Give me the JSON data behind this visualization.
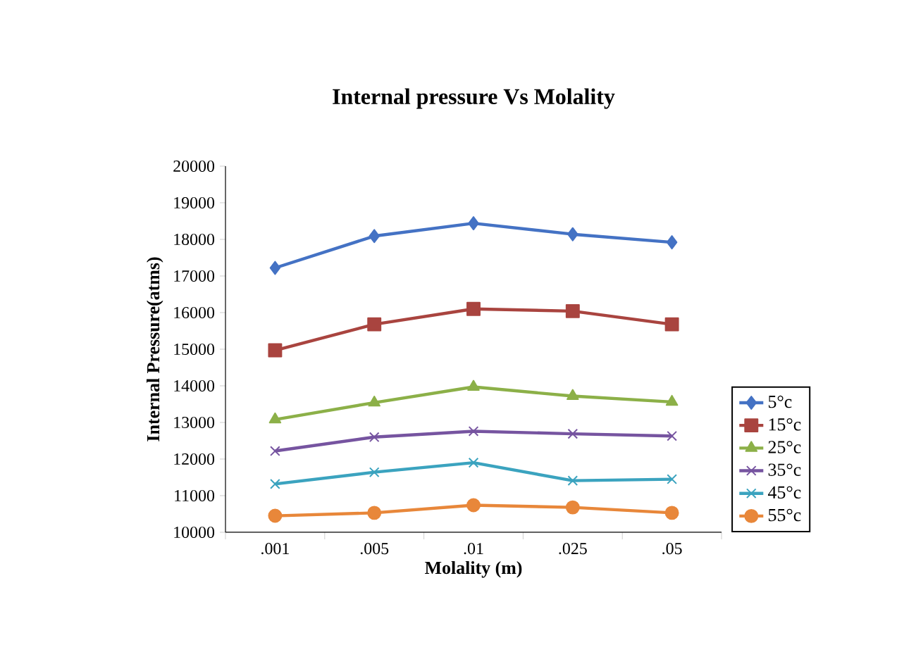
{
  "chart_data": {
    "type": "line",
    "title": "Internal pressure  Vs Molality",
    "xlabel": "Molality (m)",
    "ylabel": "Internal Pressure(atms)",
    "categories": [
      ".001",
      ".005",
      ".01",
      ".025",
      ".05"
    ],
    "series": [
      {
        "name": "5°c",
        "color": "#4472c4",
        "marker": "diamond",
        "values": [
          17220,
          18090,
          18440,
          18140,
          17920
        ]
      },
      {
        "name": "15°c",
        "color": "#a9443f",
        "marker": "square",
        "values": [
          14970,
          15680,
          16100,
          16040,
          15680
        ]
      },
      {
        "name": "25°c",
        "color": "#8cb048",
        "marker": "triangle",
        "values": [
          13080,
          13540,
          13970,
          13720,
          13560
        ]
      },
      {
        "name": "35°c",
        "color": "#7654a0",
        "marker": "cross",
        "values": [
          12220,
          12600,
          12760,
          12690,
          12630
        ]
      },
      {
        "name": "45°c",
        "color": "#3ba3bf",
        "marker": "cross",
        "values": [
          11320,
          11640,
          11900,
          11410,
          11450
        ]
      },
      {
        "name": "55°c",
        "color": "#e8873a",
        "marker": "circle",
        "values": [
          10450,
          10530,
          10740,
          10680,
          10530
        ]
      }
    ],
    "ylim": [
      10000,
      20000
    ],
    "yticks": [
      10000,
      11000,
      12000,
      13000,
      14000,
      15000,
      16000,
      17000,
      18000,
      19000,
      20000
    ],
    "grid": false,
    "legend": "right"
  }
}
